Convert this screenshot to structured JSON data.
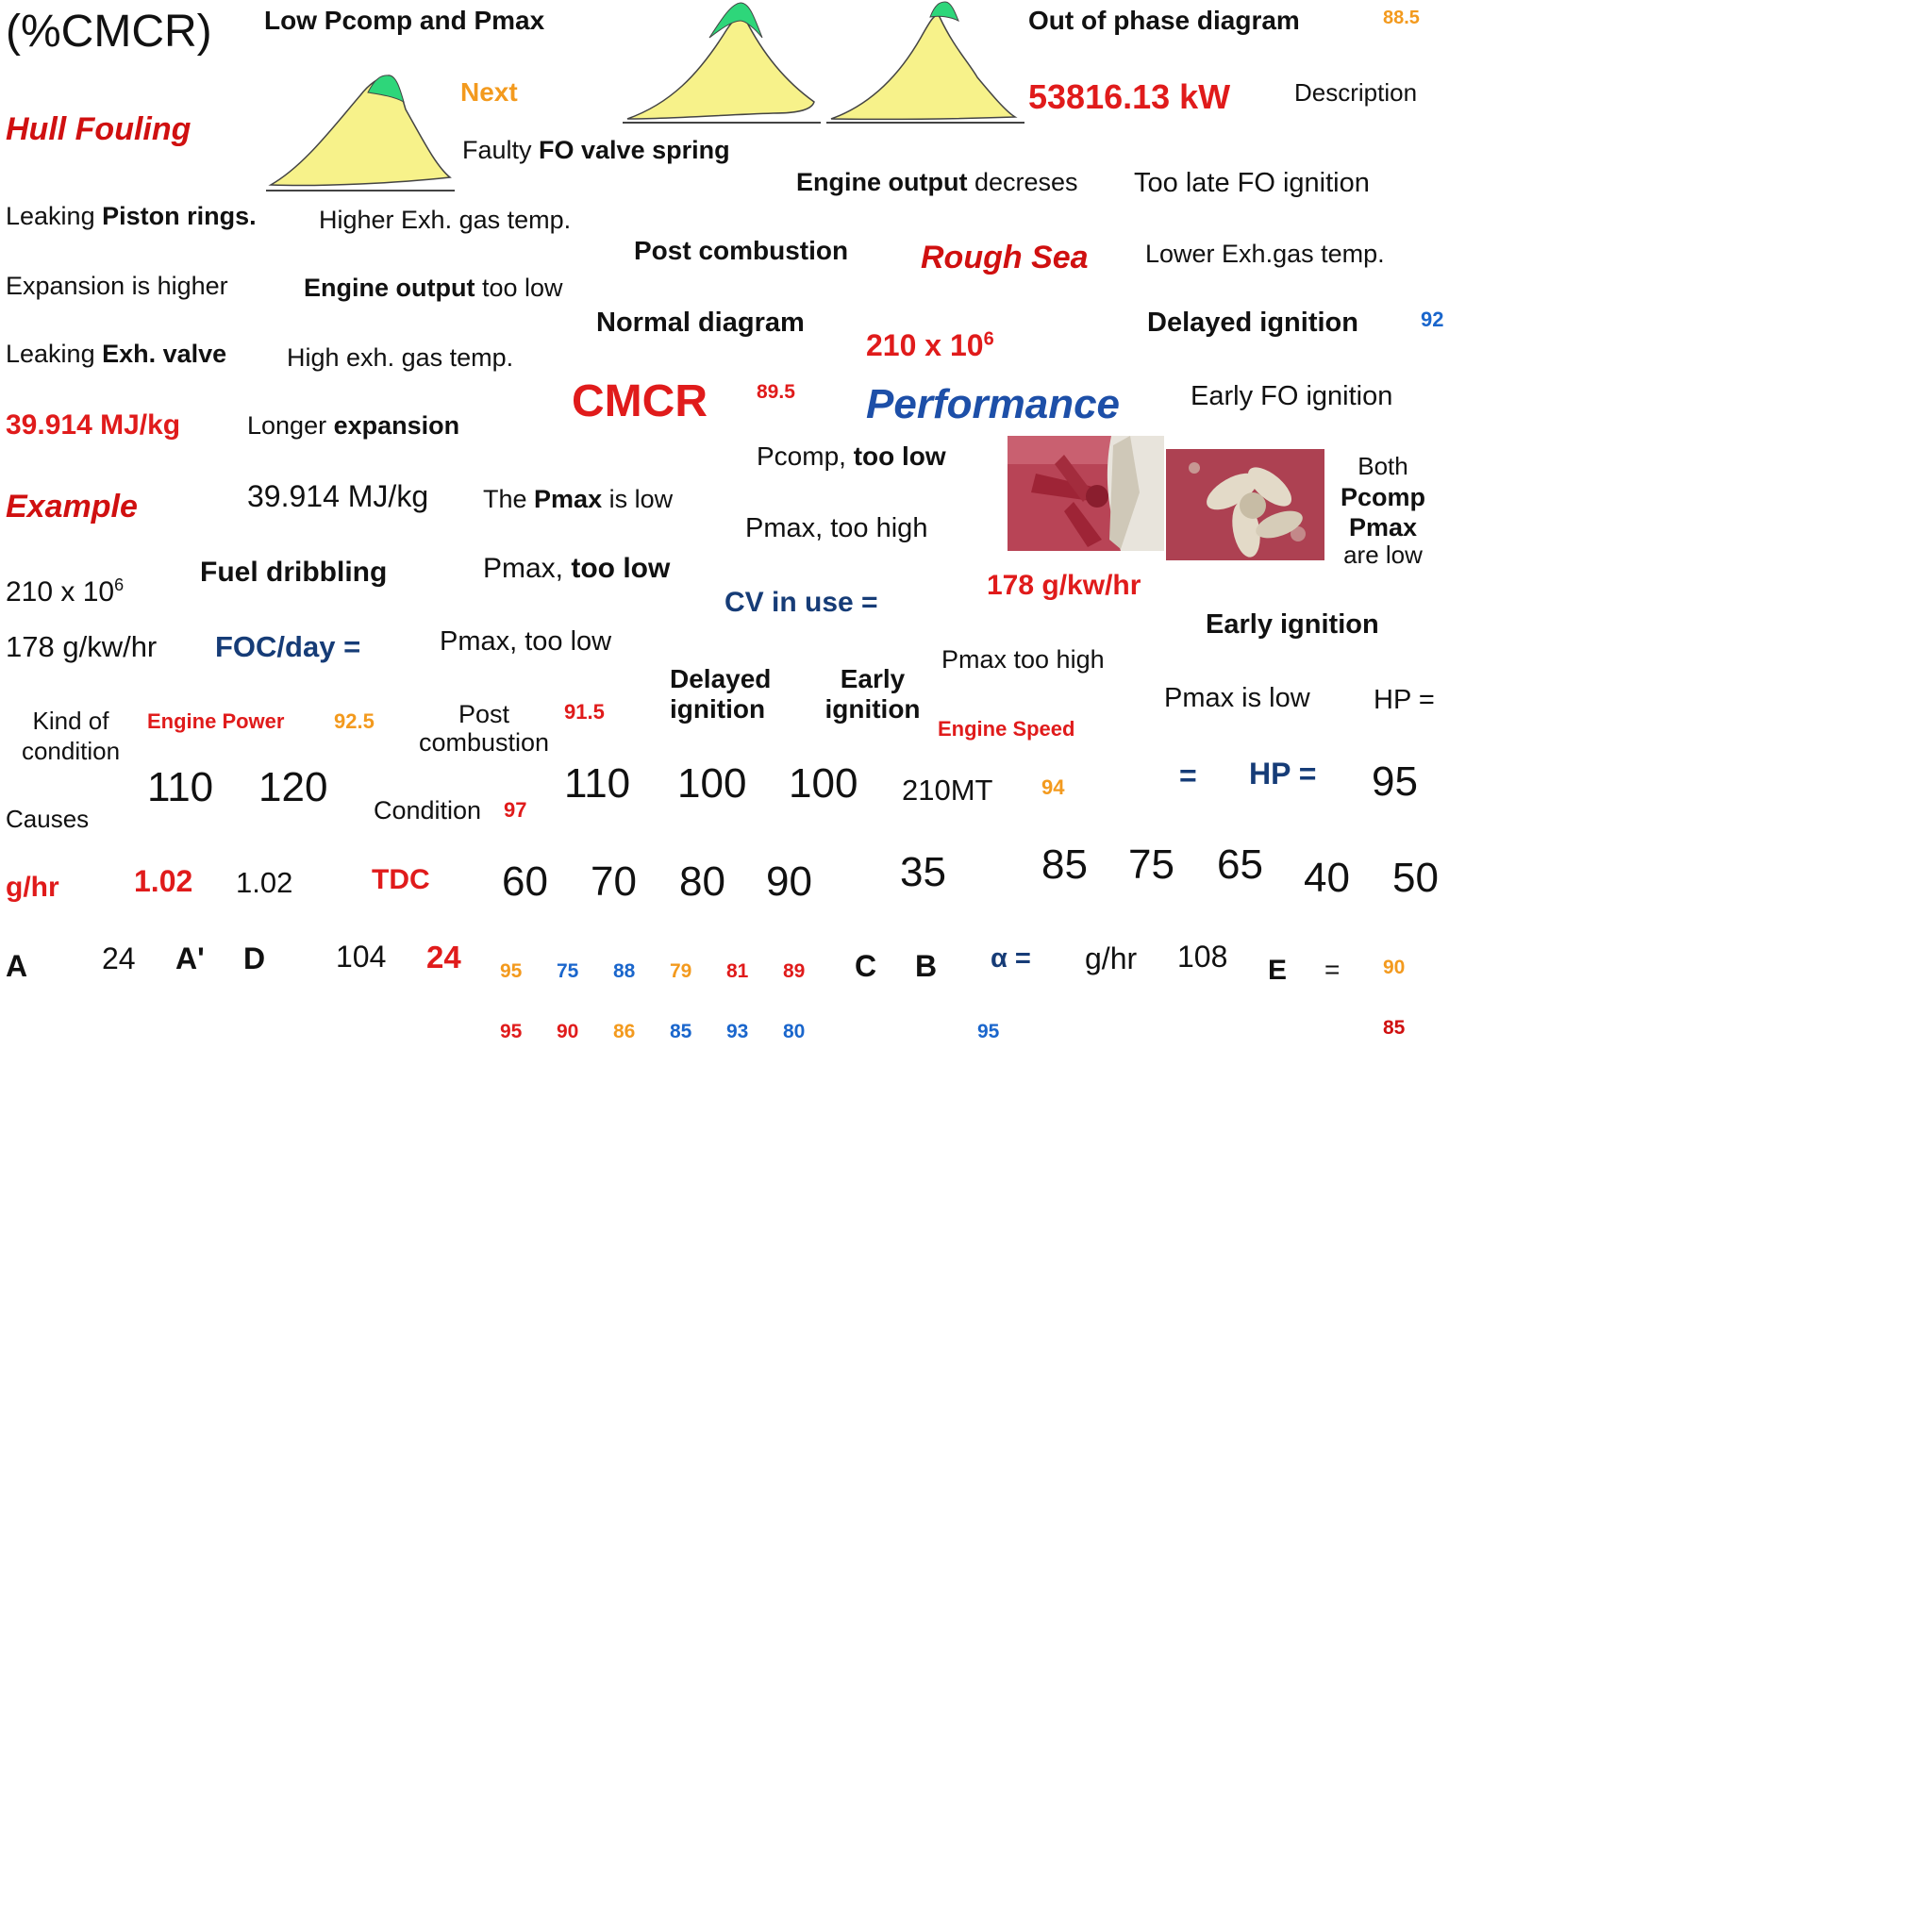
{
  "labels": {
    "cmcr_pct": "(%CMCR)",
    "low_pcomp_pmax": "Low Pcomp and Pmax",
    "out_of_phase": "Out of phase diagram",
    "next": "Next",
    "hull_fouling": "Hull Fouling",
    "power_kw": "53816.13 kW",
    "description": "Description",
    "faulty_fo_pre": "Faulty ",
    "faulty_fo_bold": "FO valve spring",
    "engine_output_bold": "Engine output",
    "engine_output_rest": " decreses",
    "too_late_fo": "Too late FO ignition",
    "leaking_pre": "Leaking ",
    "leaking_bold": "Piston rings.",
    "higher_exh": "Higher Exh. gas temp.",
    "post_combustion": "Post combustion",
    "rough_sea": "Rough Sea",
    "lower_exh": "Lower Exh.gas temp.",
    "expansion_higher": "Expansion is higher",
    "eng_out_low_bold": "Engine output",
    "eng_out_low_rest": " too low",
    "normal_diagram": "Normal diagram",
    "delayed_ignition_top": "Delayed ignition",
    "val_92_blue": "92",
    "leaking_exh_pre": "Leaking ",
    "leaking_exh_bold": "Exh. valve",
    "high_exh": "High exh. gas temp.",
    "sci_red_base": "210 x 10",
    "sci_red_exp": "6",
    "cmcr": "CMCR",
    "val_89_5": "89.5",
    "performance": "Performance",
    "early_fo": "Early FO ignition",
    "mjkg_red": "39.914 MJ/kg",
    "longer_pre": "Longer ",
    "longer_bold": "expansion",
    "pcomp_pre": "Pcomp, ",
    "pcomp_bold": "too low",
    "example": "Example",
    "mjkg_black": "39.914 MJ/kg",
    "the_pmax_pre": "The ",
    "the_pmax_bold": "Pmax",
    "the_pmax_rest": " is low",
    "pmax_too_high": "Pmax, too high",
    "both_1": "Both",
    "both_2": "Pcomp",
    "both_3": "Pmax",
    "both_4": "are low",
    "fuel_dribbling": "Fuel dribbling",
    "pmax_too_low_pre": "Pmax, ",
    "pmax_too_low_bold": "too low",
    "cv_in_use": "CV in use =",
    "gkwhr_red": "178 g/kw/hr",
    "sci_black_base": "210 x 10",
    "sci_black_exp": "6",
    "early_ignition_top": "Early ignition",
    "gkwhr_black": "178 g/kw/hr",
    "foc_day": "FOC/day =",
    "pmax_too_low_plain": "Pmax, too low",
    "pmax_too_high2": "Pmax too high",
    "delayed_1": "Delayed",
    "delayed_2": "ignition",
    "early_1": "Early",
    "early_2": "ignition",
    "pmax_is_low": "Pmax is low",
    "hp_eq_1": "HP =",
    "kind_1": "Kind of",
    "kind_2": "condition",
    "engine_power": "Engine Power",
    "val_92_5": "92.5",
    "post_1": "Post",
    "post_2": "combustion",
    "val_91_5": "91.5",
    "engine_speed": "Engine Speed",
    "n110a": "110",
    "n120": "120",
    "condition": "Condition",
    "val_97": "97",
    "n110b": "110",
    "n100a": "100",
    "n100b": "100",
    "mt210": "210MT",
    "val_94": "94",
    "eq_navy": "=",
    "hp_eq_2": "HP =",
    "n95": "95",
    "causes": "Causes",
    "ghr_red": "g/hr",
    "v102_red": "1.02",
    "v102_black": "1.02",
    "tdc": "TDC",
    "n60": "60",
    "n70": "70",
    "n80": "80",
    "n90": "90",
    "n35": "35",
    "n85": "85",
    "n75": "75",
    "n65": "65",
    "n40": "40",
    "n50": "50",
    "a": "A",
    "n24": "24",
    "a_prime": "A'",
    "d": "D",
    "n104": "104",
    "n24_red": "24",
    "c": "C",
    "b": "B",
    "alpha": "α =",
    "ghr_black": "g/hr",
    "n108": "108",
    "e": "E",
    "eq": "=",
    "val_88_5": "88.5"
  },
  "small_row1": [
    "95",
    "75",
    "88",
    "79",
    "81",
    "89"
  ],
  "small_row2": [
    "95",
    "90",
    "86",
    "85",
    "93",
    "80"
  ],
  "small_misc": {
    "r1_right": "90",
    "r2_mid": "95",
    "r2_right": "85"
  },
  "colors": {
    "red": "#e01b1b",
    "orange": "#f39a1e",
    "blue": "#1a66cc",
    "navy": "#163c77",
    "diagram_fill": "#f7f28a",
    "diagram_peak": "#2ed67a"
  }
}
